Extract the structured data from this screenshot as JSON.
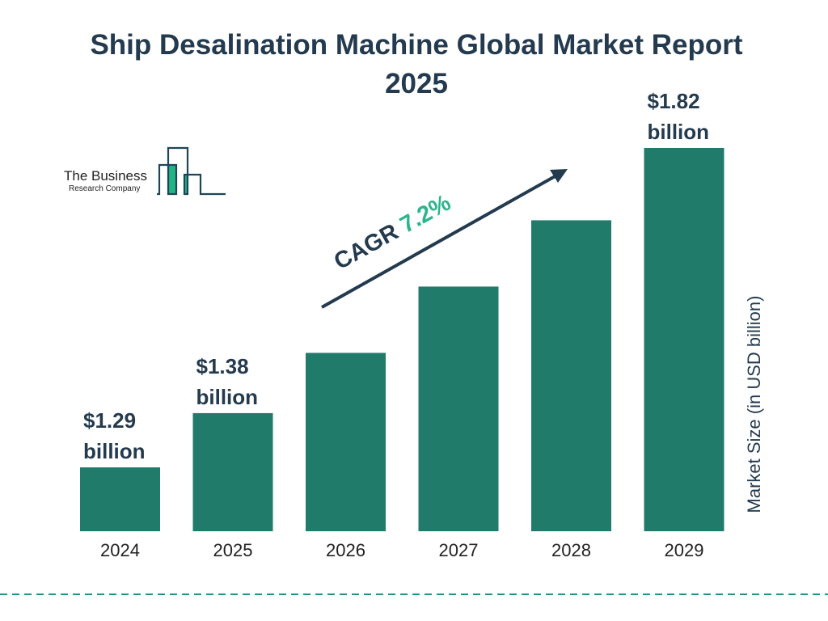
{
  "logo": {
    "line1": "The Business",
    "line2": "Research Company",
    "accent": "#1fb585",
    "stroke": "#1f4556"
  },
  "colors": {
    "bar": "#217b6b",
    "text": "#243a4f",
    "cagr": "#2bb58a",
    "divider": "#2a8f8a"
  },
  "chart_data": {
    "type": "bar",
    "title": "Ship Desalination Machine Global Market Report 2025",
    "categories": [
      "2024",
      "2025",
      "2026",
      "2027",
      "2028",
      "2029"
    ],
    "values": [
      1.29,
      1.38,
      1.48,
      1.59,
      1.7,
      1.82
    ],
    "data_labels": [
      {
        "index": 0,
        "line1": "$1.29",
        "line2": "billion"
      },
      {
        "index": 1,
        "line1": "$1.38",
        "line2": "billion"
      },
      {
        "index": 5,
        "line1": "$1.82",
        "line2": "billion"
      }
    ],
    "ylabel": "Market Size (in USD billion)",
    "xlabel": "",
    "annotation": {
      "label": "CAGR ",
      "value": "7.2%"
    },
    "grid": false,
    "legend": "none"
  }
}
